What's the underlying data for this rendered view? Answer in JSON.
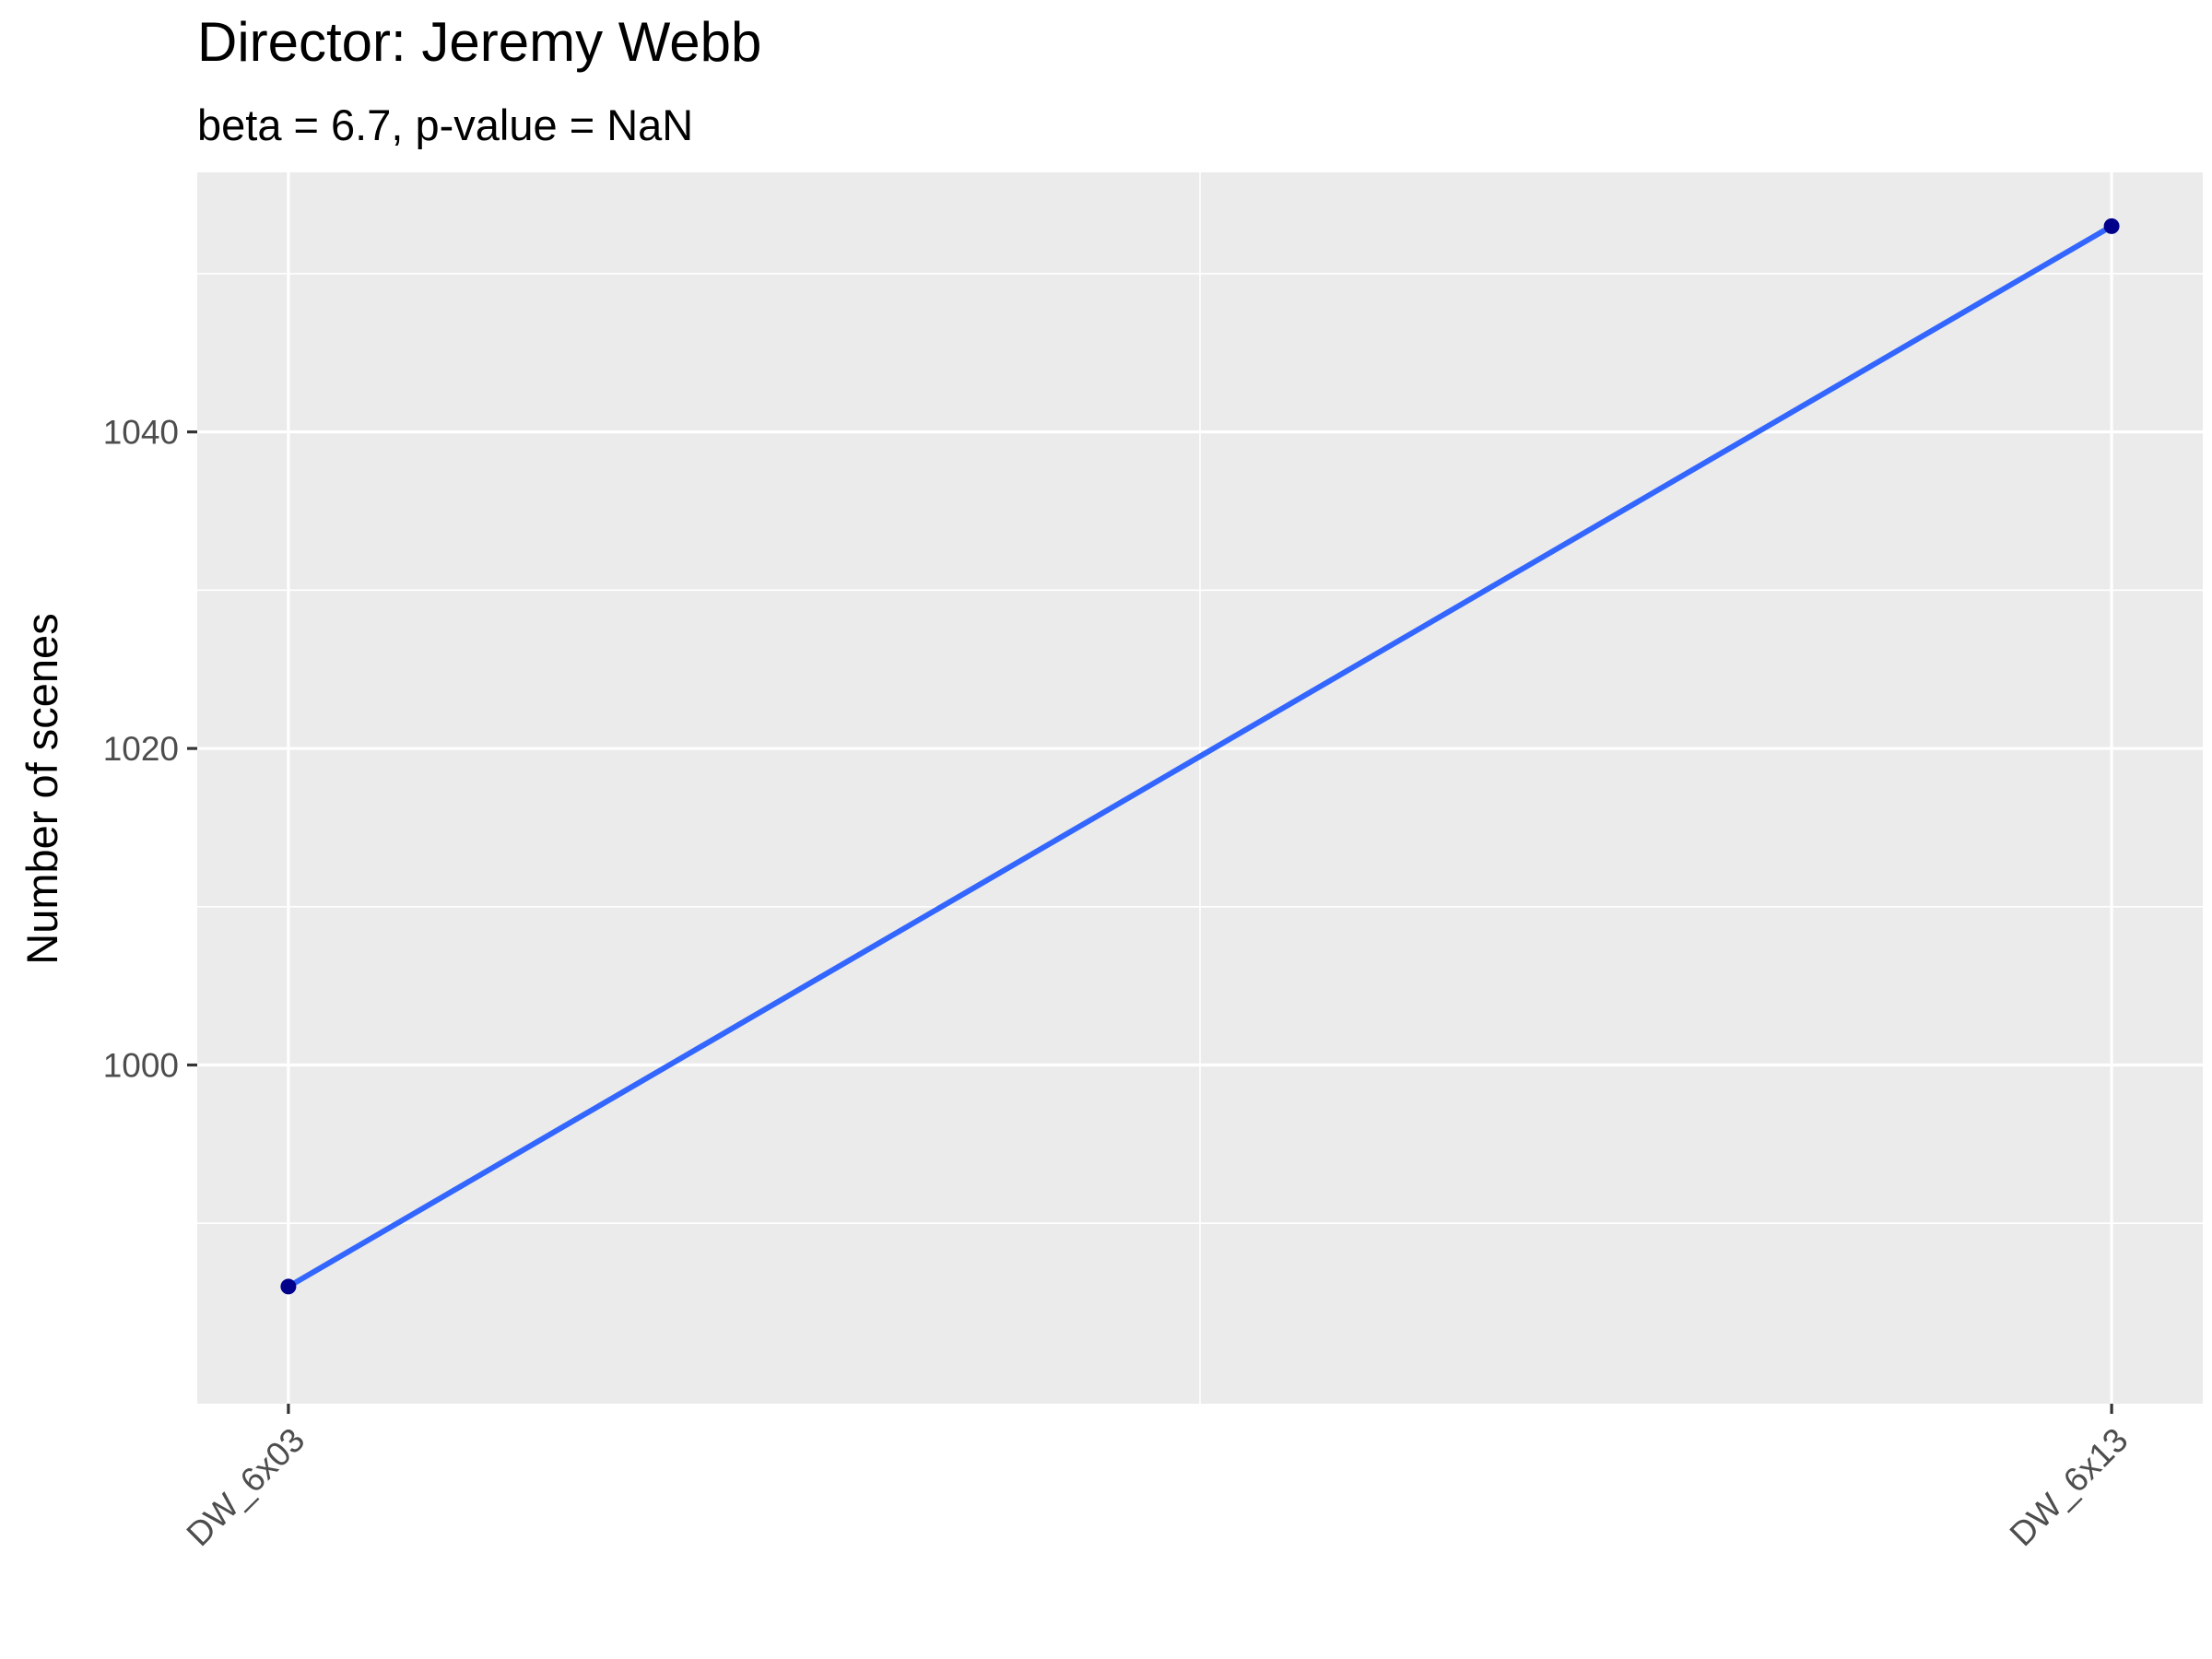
{
  "chart_data": {
    "type": "line",
    "title": "Director: Jeremy Webb",
    "subtitle": "beta = 6.7, p-value = NaN",
    "xlabel": "",
    "ylabel": "Number of scenes",
    "categories": [
      "DW_6x03",
      "DW_6x13"
    ],
    "series": [
      {
        "values": [
          986,
          1053
        ],
        "point_color": "#00008b",
        "line_color": "#3366ff"
      }
    ],
    "trend_line": {
      "start": 986,
      "end": 1053
    },
    "ylim": [
      978.6,
      1056.4
    ],
    "yticks": [
      1000,
      1020,
      1040
    ],
    "yticks_minor": [
      990,
      1010,
      1030,
      1050
    ],
    "grid": true,
    "legend": "none",
    "x_tick_rotation": 45
  },
  "colors": {
    "panel_background": "#ebebeb",
    "grid_major": "#ffffff",
    "tick_text": "#4d4d4d",
    "tick_mark": "#333333"
  }
}
